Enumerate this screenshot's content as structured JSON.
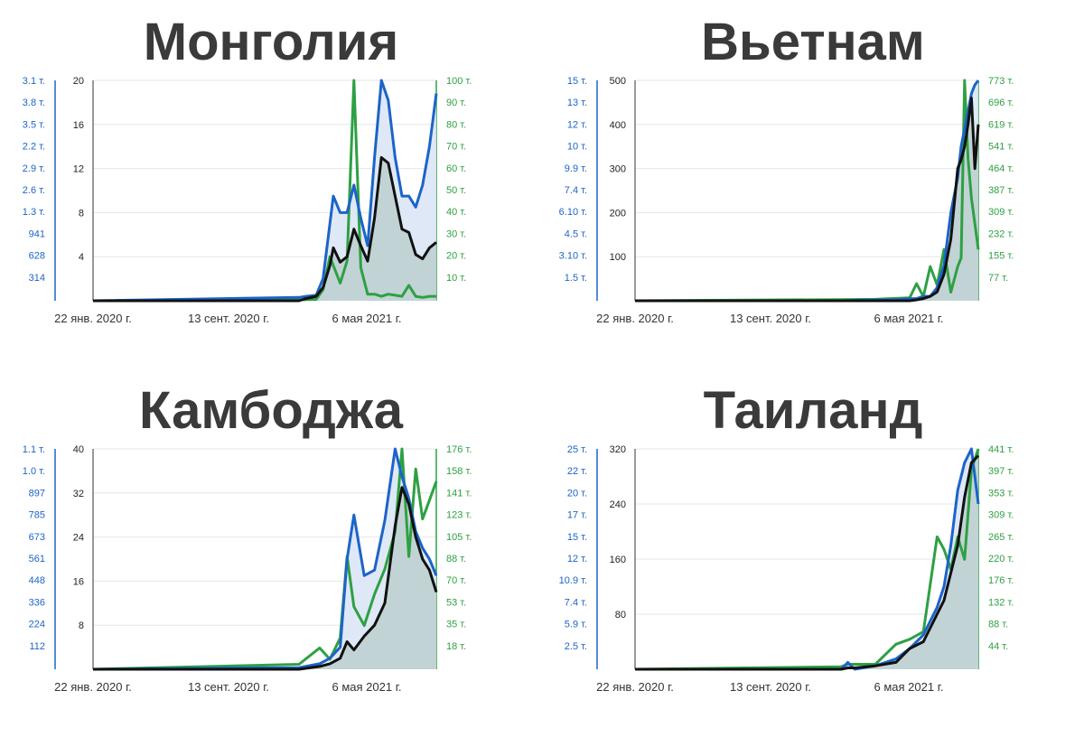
{
  "colors": {
    "cases": "#1c64c8",
    "deaths": "#111111",
    "tests": "#2ea043",
    "fill_cases": "#dbe6f5",
    "fill_deaths": "#bfd0d2",
    "gridline": "#e6e6e6"
  },
  "chart_data": [
    {
      "type": "line",
      "title": "Монголия",
      "x_ticks": [
        "22 янв. 2020 г.",
        "13 сент. 2020 г.",
        "6 мая 2021 г."
      ],
      "left_ticks": [
        "3.1 т.",
        "3.8 т.",
        "3.5 т.",
        "2.2 т.",
        "2.9 т.",
        "2.6 т.",
        "1.3 т.",
        "941",
        "628",
        "314"
      ],
      "mid_ticks": [
        "20",
        "16",
        "12",
        "8",
        "4"
      ],
      "mid_ylim": [
        0,
        20
      ],
      "right_ticks": [
        "100 т.",
        "90 т.",
        "80 т.",
        "70 т.",
        "60 т.",
        "50 т.",
        "40 т.",
        "30 т.",
        "20 т.",
        "10 т."
      ],
      "x": [
        0,
        0.6,
        0.62,
        0.65,
        0.67,
        0.69,
        0.7,
        0.72,
        0.74,
        0.76,
        0.78,
        0.8,
        0.82,
        0.84,
        0.86,
        0.88,
        0.9,
        0.92,
        0.94,
        0.96,
        0.98,
        1.0
      ],
      "series": [
        {
          "key": "deaths",
          "values": [
            0,
            0,
            0.2,
            0.4,
            1.2,
            3.2,
            4.8,
            3.5,
            4,
            6.5,
            5,
            3.6,
            7.5,
            13,
            12.5,
            9.5,
            6.5,
            6.2,
            4.2,
            3.8,
            4.8,
            5.3
          ]
        },
        {
          "key": "cases",
          "values": [
            0,
            0.3,
            0.4,
            0.5,
            2,
            7,
            9.5,
            8,
            8,
            10.5,
            7.5,
            5,
            13,
            20,
            18.2,
            13,
            9.5,
            9.5,
            8.5,
            10.5,
            14,
            18.8
          ]
        },
        {
          "key": "tests",
          "values": [
            0,
            0.4,
            0.5,
            0.6,
            5,
            20,
            16,
            8,
            18,
            100,
            15,
            3,
            3,
            2,
            3,
            2.5,
            2,
            7,
            2,
            1.5,
            2,
            2
          ]
        }
      ]
    },
    {
      "type": "line",
      "title": "Вьетнам",
      "x_ticks": [
        "22 янв. 2020 г.",
        "13 сент. 2020 г.",
        "6 мая 2021 г."
      ],
      "left_ticks": [
        "15 т.",
        "13 т.",
        "12 т.",
        "10 т.",
        "9.9 т.",
        "7.4 т.",
        "6.10 т.",
        "4.5 т.",
        "3.10 т.",
        "1.5 т."
      ],
      "mid_ticks": [
        "500",
        "400",
        "300",
        "200",
        "100"
      ],
      "mid_ylim": [
        0,
        500
      ],
      "right_ticks": [
        "773 т.",
        "696 т.",
        "619 т.",
        "541 т.",
        "464 т.",
        "387 т.",
        "309 т.",
        "232 т.",
        "155 т.",
        "77 т."
      ],
      "x": [
        0,
        0.6,
        0.7,
        0.75,
        0.8,
        0.82,
        0.84,
        0.86,
        0.88,
        0.9,
        0.92,
        0.94,
        0.95,
        0.96,
        0.97,
        0.98,
        0.99,
        1.0
      ],
      "series": [
        {
          "key": "deaths",
          "values": [
            0,
            0,
            0,
            0,
            0,
            2,
            5,
            10,
            20,
            60,
            140,
            300,
            320,
            350,
            400,
            460,
            300,
            400
          ]
        },
        {
          "key": "cases",
          "values": [
            0,
            0,
            2,
            2,
            5,
            5,
            10,
            10,
            30,
            80,
            200,
            280,
            350,
            390,
            430,
            470,
            490,
            500
          ]
        },
        {
          "key": "tests",
          "values": [
            0,
            4,
            5,
            8,
            10,
            60,
            15,
            120,
            55,
            180,
            30,
            120,
            150,
            773,
            500,
            360,
            270,
            180
          ]
        }
      ]
    },
    {
      "type": "line",
      "title": "Камбоджа",
      "x_ticks": [
        "22 янв. 2020 г.",
        "13 сент. 2020 г.",
        "6 мая 2021 г."
      ],
      "left_ticks": [
        "1.1 т.",
        "1.0 т.",
        "897",
        "785",
        "673",
        "561",
        "448",
        "336",
        "224",
        "112"
      ],
      "mid_ticks": [
        "40",
        "32",
        "24",
        "16",
        "8"
      ],
      "mid_ylim": [
        0,
        40
      ],
      "right_ticks": [
        "176 т.",
        "158 т.",
        "141 т.",
        "123 т.",
        "105 т.",
        "88 т.",
        "70 т.",
        "53 т.",
        "35 т.",
        "18 т."
      ],
      "x": [
        0,
        0.6,
        0.66,
        0.69,
        0.72,
        0.74,
        0.76,
        0.79,
        0.82,
        0.85,
        0.88,
        0.9,
        0.92,
        0.94,
        0.96,
        0.98,
        1.0
      ],
      "series": [
        {
          "key": "deaths",
          "values": [
            0,
            0,
            0.5,
            1,
            2,
            5,
            3.5,
            6,
            8,
            12,
            26,
            33,
            30,
            24,
            20,
            18,
            14
          ]
        },
        {
          "key": "cases",
          "values": [
            0,
            0.3,
            1,
            2,
            4,
            20,
            28,
            17,
            18,
            27,
            40,
            35,
            31,
            25,
            22,
            20,
            17
          ]
        },
        {
          "key": "tests",
          "values": [
            0,
            4,
            17,
            8,
            25,
            90,
            50,
            35,
            60,
            80,
            110,
            176,
            90,
            160,
            120,
            135,
            150
          ]
        }
      ]
    },
    {
      "type": "line",
      "title": "Таиланд",
      "x_ticks": [
        "22 янв. 2020 г.",
        "13 сент. 2020 г.",
        "6 мая 2021 г."
      ],
      "left_ticks": [
        "25 т.",
        "22 т.",
        "20 т.",
        "17 т.",
        "15 т.",
        "12 т.",
        "10.9 т.",
        "7.4 т.",
        "5.9 т.",
        "2.5 т."
      ],
      "mid_ticks": [
        "320",
        "240",
        "160",
        "80"
      ],
      "mid_ylim": [
        0,
        320
      ],
      "right_ticks": [
        "441 т.",
        "397 т.",
        "353 т.",
        "309 т.",
        "265 т.",
        "220 т.",
        "176 т.",
        "132 т.",
        "88 т.",
        "44 т."
      ],
      "x": [
        0,
        0.6,
        0.62,
        0.64,
        0.7,
        0.76,
        0.8,
        0.84,
        0.88,
        0.9,
        0.92,
        0.94,
        0.96,
        0.98,
        1.0
      ],
      "series": [
        {
          "key": "deaths",
          "values": [
            0,
            0,
            2,
            2,
            5,
            10,
            30,
            40,
            80,
            100,
            140,
            180,
            250,
            300,
            310
          ]
        },
        {
          "key": "cases",
          "values": [
            0,
            0,
            10,
            0,
            5,
            15,
            30,
            50,
            90,
            120,
            180,
            260,
            300,
            320,
            240
          ]
        },
        {
          "key": "tests",
          "values": [
            0,
            5,
            10,
            10,
            10,
            50,
            60,
            75,
            265,
            240,
            200,
            265,
            220,
            400,
            441
          ]
        }
      ]
    }
  ]
}
